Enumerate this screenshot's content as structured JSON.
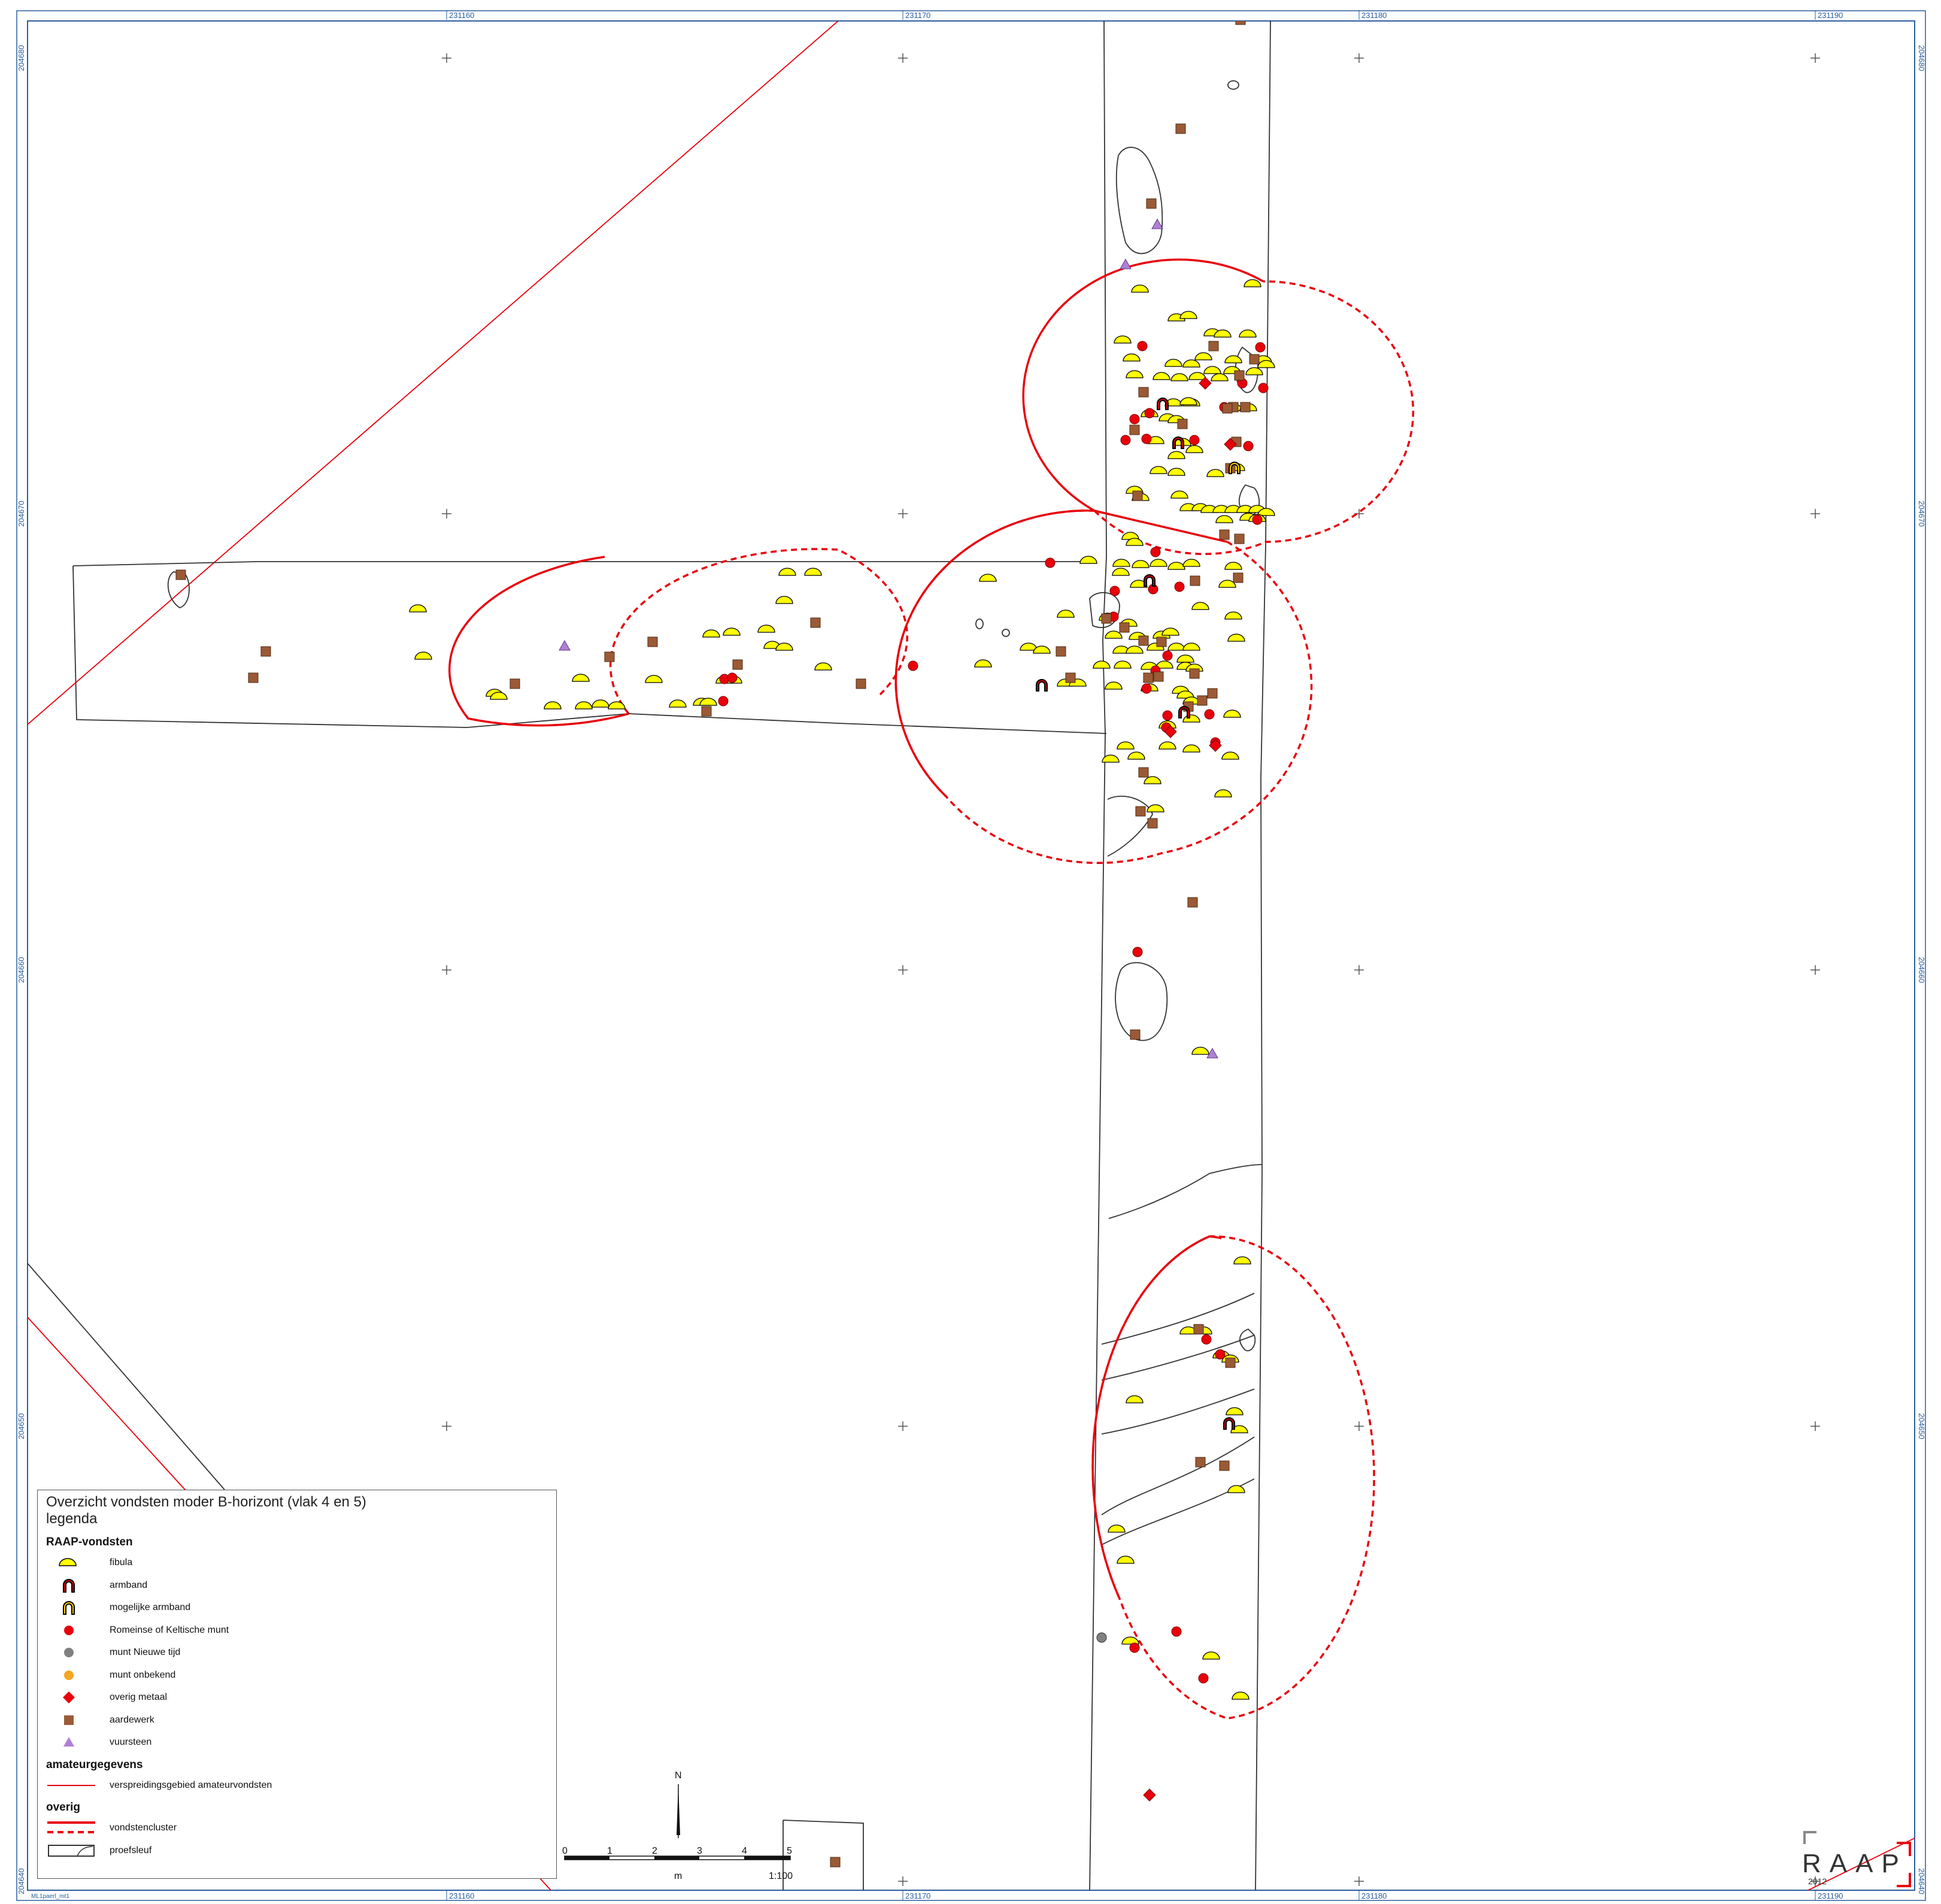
{
  "map": {
    "x_labels": [
      "231160",
      "231170",
      "231180",
      "231190"
    ],
    "y_labels": [
      "204680",
      "204670",
      "204660",
      "204650",
      "204640"
    ],
    "footer_note": "ML1paerl_mt1"
  },
  "legend": {
    "title": "Overzicht vondsten moder B-horizont (vlak 4 en 5)",
    "subtitle": "legenda",
    "sections": [
      {
        "heading": "RAAP-vondsten",
        "items": [
          {
            "label": "fibula",
            "symbol": "fibula-icon"
          },
          {
            "label": "armband",
            "symbol": "armband-icon"
          },
          {
            "label": "mogelijke armband",
            "symbol": "possible-armband-icon"
          },
          {
            "label": "Romeinse of Keltische munt",
            "symbol": "roman-coin-icon"
          },
          {
            "label": "munt Nieuwe tijd",
            "symbol": "modern-coin-icon"
          },
          {
            "label": "munt onbekend",
            "symbol": "unknown-coin-icon"
          },
          {
            "label": "overig metaal",
            "symbol": "other-metal-icon"
          },
          {
            "label": "aardewerk",
            "symbol": "pottery-icon"
          },
          {
            "label": "vuursteen",
            "symbol": "flint-icon"
          }
        ]
      },
      {
        "heading": "amateurgegevens",
        "items": [
          {
            "label": "verspreidingsgebied amateurvondsten",
            "symbol": "thin-red-line-icon"
          }
        ]
      },
      {
        "heading": "overig",
        "items": [
          {
            "label": "vondstencluster",
            "symbol": "cluster-line-icon"
          },
          {
            "label": "proefsleuf",
            "symbol": "trench-icon"
          }
        ]
      }
    ]
  },
  "scalebar": {
    "ticks": [
      "0",
      "1",
      "2",
      "3",
      "4",
      "5"
    ],
    "unit": "m",
    "scale": "1:100",
    "north": "N"
  },
  "branding": {
    "logo": "RAAP",
    "year": "2012"
  },
  "colors": {
    "fibula": "#ffff00",
    "coin": "#e8000b",
    "pottery": "#9b5a35",
    "flint": "#b07fd6",
    "cluster": "#e8000b",
    "coord": "#2a5d9f"
  }
}
